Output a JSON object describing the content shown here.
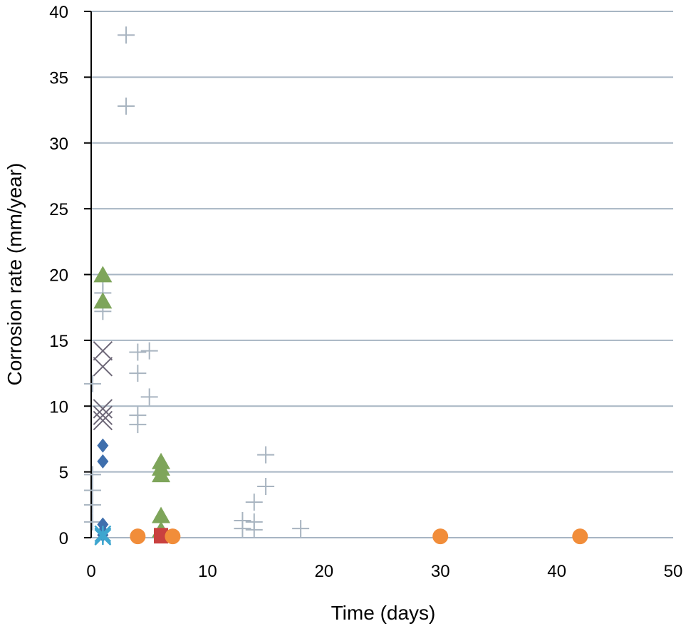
{
  "chart_data": {
    "type": "scatter",
    "xlabel": "Time (days)",
    "ylabel": "Corrosion rate (mm/year)",
    "xlim": [
      0,
      50
    ],
    "ylim": [
      0,
      40
    ],
    "xticks": [
      0,
      10,
      20,
      30,
      40,
      50
    ],
    "yticks": [
      0,
      5,
      10,
      15,
      20,
      25,
      30,
      35,
      40
    ],
    "grid": "horizontal",
    "colors": {
      "grid": "#a7b5c3",
      "axis": "#000000"
    },
    "series": [
      {
        "marker": "diamond",
        "color": "#3f6fad",
        "points": [
          [
            1,
            7.0
          ],
          [
            1,
            5.8
          ],
          [
            1,
            1.0
          ],
          [
            1,
            0.5
          ],
          [
            1,
            0.2
          ]
        ]
      },
      {
        "marker": "square",
        "color": "#c9413f",
        "points": [
          [
            6,
            0.2
          ],
          [
            6,
            0.1
          ]
        ]
      },
      {
        "marker": "triangle",
        "color": "#7ea55a",
        "points": [
          [
            1,
            19.9
          ],
          [
            1,
            17.9
          ],
          [
            6,
            5.7
          ],
          [
            6,
            5.2
          ],
          [
            6,
            4.7
          ],
          [
            6,
            1.6
          ],
          [
            6,
            0.5
          ]
        ]
      },
      {
        "marker": "x",
        "color": "#6e6878",
        "points": [
          [
            1,
            14.2
          ],
          [
            1,
            13.0
          ],
          [
            1,
            9.8
          ],
          [
            1,
            9.3
          ],
          [
            1,
            8.9
          ]
        ]
      },
      {
        "marker": "asterisk",
        "color": "#3ea6cf",
        "points": [
          [
            1,
            0.3
          ],
          [
            1,
            0.15
          ],
          [
            1,
            0.05
          ]
        ]
      },
      {
        "marker": "circle",
        "color": "#f18d3a",
        "points": [
          [
            4,
            0.1
          ],
          [
            7,
            0.1
          ],
          [
            30,
            0.1
          ],
          [
            42,
            0.1
          ]
        ]
      },
      {
        "marker": "plus",
        "color": "#a8b4c0",
        "points": [
          [
            1,
            19.5
          ],
          [
            1,
            18.6
          ],
          [
            1,
            17.2
          ],
          [
            0,
            11.7
          ],
          [
            0,
            4.8
          ],
          [
            0,
            3.6
          ],
          [
            0,
            2.5
          ],
          [
            0,
            1.2
          ],
          [
            3,
            38.2
          ],
          [
            3,
            32.8
          ],
          [
            4,
            14.1
          ],
          [
            4,
            12.5
          ],
          [
            4,
            9.3
          ],
          [
            4,
            8.6
          ],
          [
            5,
            14.2
          ],
          [
            5,
            10.7
          ],
          [
            13,
            1.3
          ],
          [
            13,
            0.7
          ],
          [
            14,
            2.7
          ],
          [
            14,
            1.2
          ],
          [
            14,
            0.6
          ],
          [
            15,
            6.3
          ],
          [
            15,
            3.9
          ],
          [
            18,
            0.7
          ]
        ]
      }
    ]
  }
}
